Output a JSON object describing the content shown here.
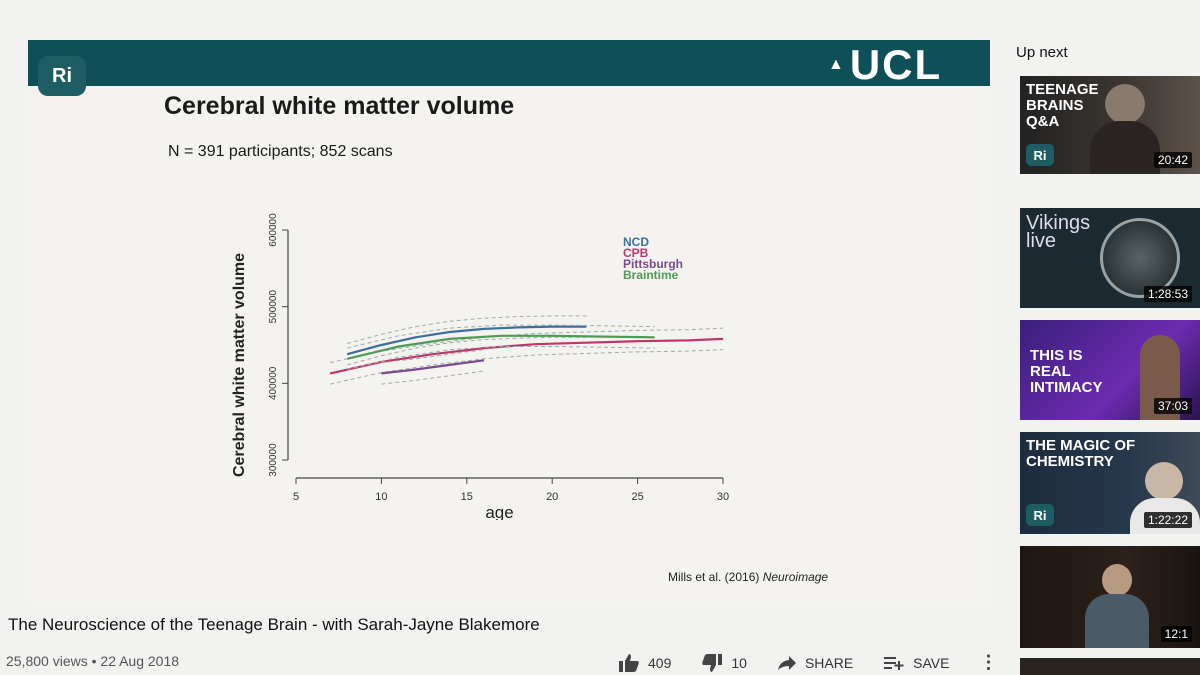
{
  "slide": {
    "ri_logo": "Ri",
    "ucl_logo": "UCL",
    "title": "Cerebral white matter volume",
    "subtitle": "N = 391 participants; 852 scans",
    "citation_authors": "Mills et al. (2016)",
    "citation_journal": "Neuroimage"
  },
  "chart_data": {
    "type": "line",
    "xlabel": "age",
    "ylabel": "Cerebral white matter volume",
    "xlim": [
      5,
      30
    ],
    "ylim": [
      300000,
      600000
    ],
    "xticks": [
      5,
      10,
      15,
      20,
      25,
      30
    ],
    "yticks": [
      300000,
      400000,
      500000,
      600000
    ],
    "legend_placement": "top-right",
    "series": [
      {
        "name": "NCD",
        "color": "#3a6f9e",
        "x": [
          8,
          10,
          12,
          14,
          16,
          18,
          20,
          22
        ],
        "y": [
          438000,
          450000,
          460000,
          467000,
          471000,
          473000,
          474000,
          474000
        ]
      },
      {
        "name": "CPB",
        "color": "#c2356b",
        "x": [
          7,
          10,
          13,
          16,
          19,
          22,
          25,
          28,
          30
        ],
        "y": [
          413000,
          428000,
          438000,
          446000,
          451000,
          453000,
          455000,
          456000,
          458000
        ]
      },
      {
        "name": "Pittsburgh",
        "color": "#7a4a8e",
        "x": [
          10,
          12,
          14,
          16
        ],
        "y": [
          413000,
          418000,
          424000,
          430000
        ]
      },
      {
        "name": "Braintime",
        "color": "#4f9a57",
        "x": [
          8,
          11,
          14,
          17,
          20,
          23,
          26
        ],
        "y": [
          432000,
          448000,
          458000,
          462000,
          462000,
          461000,
          460000
        ]
      }
    ]
  },
  "video": {
    "title": "The Neuroscience of the Teenage Brain - with Sarah-Jayne Blakemore",
    "views": "25,800 views",
    "separator": "•",
    "date": "22 Aug 2018",
    "likes": "409",
    "dislikes": "10",
    "share_label": "SHARE",
    "save_label": "SAVE",
    "more_label": "⋮"
  },
  "sidebar": {
    "up_next_label": "Up next",
    "items": [
      {
        "text": "TEENAGE\nBRAINS\nQ&A",
        "duration": "20:42",
        "badge": "Ri"
      },
      {
        "text": "Vikings\nlive",
        "duration": "1:28:53",
        "badge": ""
      },
      {
        "text": "THIS IS\nREAL\nINTIMACY",
        "duration": "37:03",
        "badge": ""
      },
      {
        "text": "THE MAGIC OF\nCHEMISTRY",
        "duration": "1:22:22",
        "badge": "Ri"
      },
      {
        "text": "",
        "duration": "12:1",
        "badge": ""
      }
    ]
  },
  "colors": {
    "slide_header": "#0f4f57",
    "ri_badge": "#1d5d63"
  }
}
